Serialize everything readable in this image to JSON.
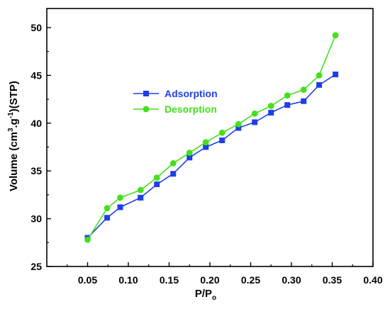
{
  "chart_data": {
    "type": "line",
    "xlabel": {
      "main": "P/P",
      "sub": "o"
    },
    "ylabel": {
      "part1": "Volume (cm",
      "sup1": "3",
      "part2": ".g",
      "sup2": "-1",
      "part3": ")(STP)"
    },
    "xlim": [
      0.0,
      0.4
    ],
    "ylim": [
      25,
      52
    ],
    "xticks": [
      {
        "value": 0.05,
        "label": "0.05"
      },
      {
        "value": 0.1,
        "label": "0.10"
      },
      {
        "value": 0.15,
        "label": "0.15"
      },
      {
        "value": 0.2,
        "label": "0.20"
      },
      {
        "value": 0.25,
        "label": "0.25"
      },
      {
        "value": 0.3,
        "label": "0.30"
      },
      {
        "value": 0.35,
        "label": "0.35"
      },
      {
        "value": 0.4,
        "label": "0.40"
      }
    ],
    "yticks": [
      {
        "value": 25,
        "label": "25"
      },
      {
        "value": 30,
        "label": "30"
      },
      {
        "value": 35,
        "label": "35"
      },
      {
        "value": 40,
        "label": "40"
      },
      {
        "value": 45,
        "label": "45"
      },
      {
        "value": 50,
        "label": "50"
      }
    ],
    "grid": false,
    "legend_position": "upper-left",
    "series": [
      {
        "name": "Adsorption",
        "color": "#1f3fe6",
        "marker": "square",
        "x": [
          0.05,
          0.074,
          0.09,
          0.115,
          0.135,
          0.155,
          0.175,
          0.195,
          0.215,
          0.235,
          0.255,
          0.275,
          0.295,
          0.315,
          0.334,
          0.354
        ],
        "y": [
          28.0,
          30.1,
          31.2,
          32.2,
          33.6,
          34.7,
          36.4,
          37.5,
          38.2,
          39.5,
          40.1,
          41.1,
          41.9,
          42.3,
          44.0,
          45.1
        ]
      },
      {
        "name": "Desorption",
        "color": "#44e01c",
        "marker": "circle",
        "x": [
          0.05,
          0.074,
          0.09,
          0.115,
          0.135,
          0.155,
          0.175,
          0.195,
          0.215,
          0.235,
          0.255,
          0.275,
          0.295,
          0.315,
          0.334,
          0.354
        ],
        "y": [
          27.8,
          31.1,
          32.2,
          33.0,
          34.3,
          35.8,
          36.9,
          38.0,
          39.0,
          39.9,
          41.0,
          41.8,
          42.9,
          43.5,
          45.0,
          49.2
        ]
      }
    ]
  }
}
